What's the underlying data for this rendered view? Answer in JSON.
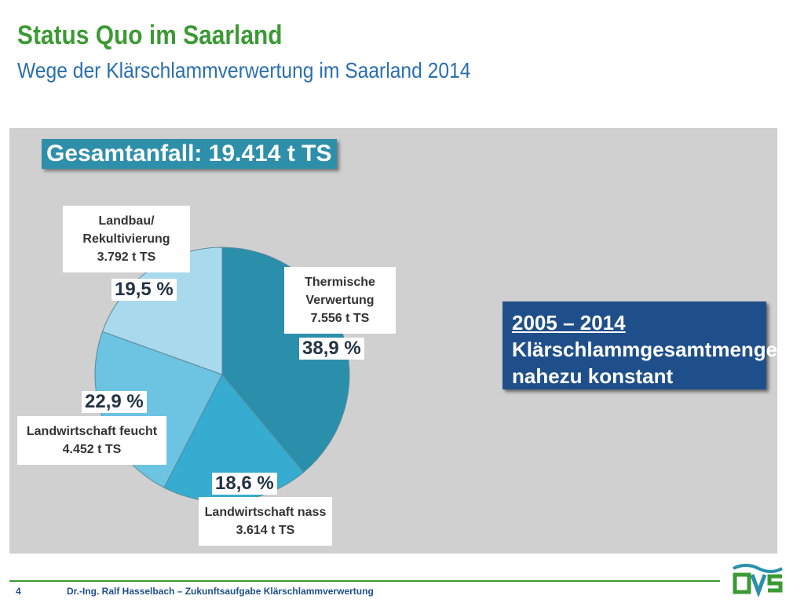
{
  "header": {
    "title": "Status Quo im Saarland",
    "subtitle": "Wege der Klärschlammverwertung im Saarland 2014"
  },
  "chart_data": {
    "type": "pie",
    "total_label": "Gesamtanfall: 19.414 t TS",
    "categories": [
      "Thermische Verwertung",
      "Landwirtschaft nass",
      "Landwirtschaft feucht",
      "Landbau/ Rekultivierung"
    ],
    "values": [
      38.9,
      18.6,
      22.9,
      19.5
    ],
    "value_labels": [
      "38,9 %",
      "18,6 %",
      "22,9 %",
      "19,5 %"
    ],
    "amount_labels": [
      "7.556 t TS",
      "3.614 t TS",
      "4.452 t TS",
      "3.792 t TS"
    ],
    "colors": [
      "#2a8fab",
      "#35acd0",
      "#6cc3e2",
      "#a9d9ec"
    ]
  },
  "note": {
    "lines": [
      "2005 – 2014",
      "Klärschlammgesamtmenge",
      "nahezu konstant"
    ]
  },
  "footer": {
    "page": "4",
    "text": "Dr.-Ing. Ralf Hasselbach – Zukunftsaufgabe Klärschlammverwertung"
  }
}
